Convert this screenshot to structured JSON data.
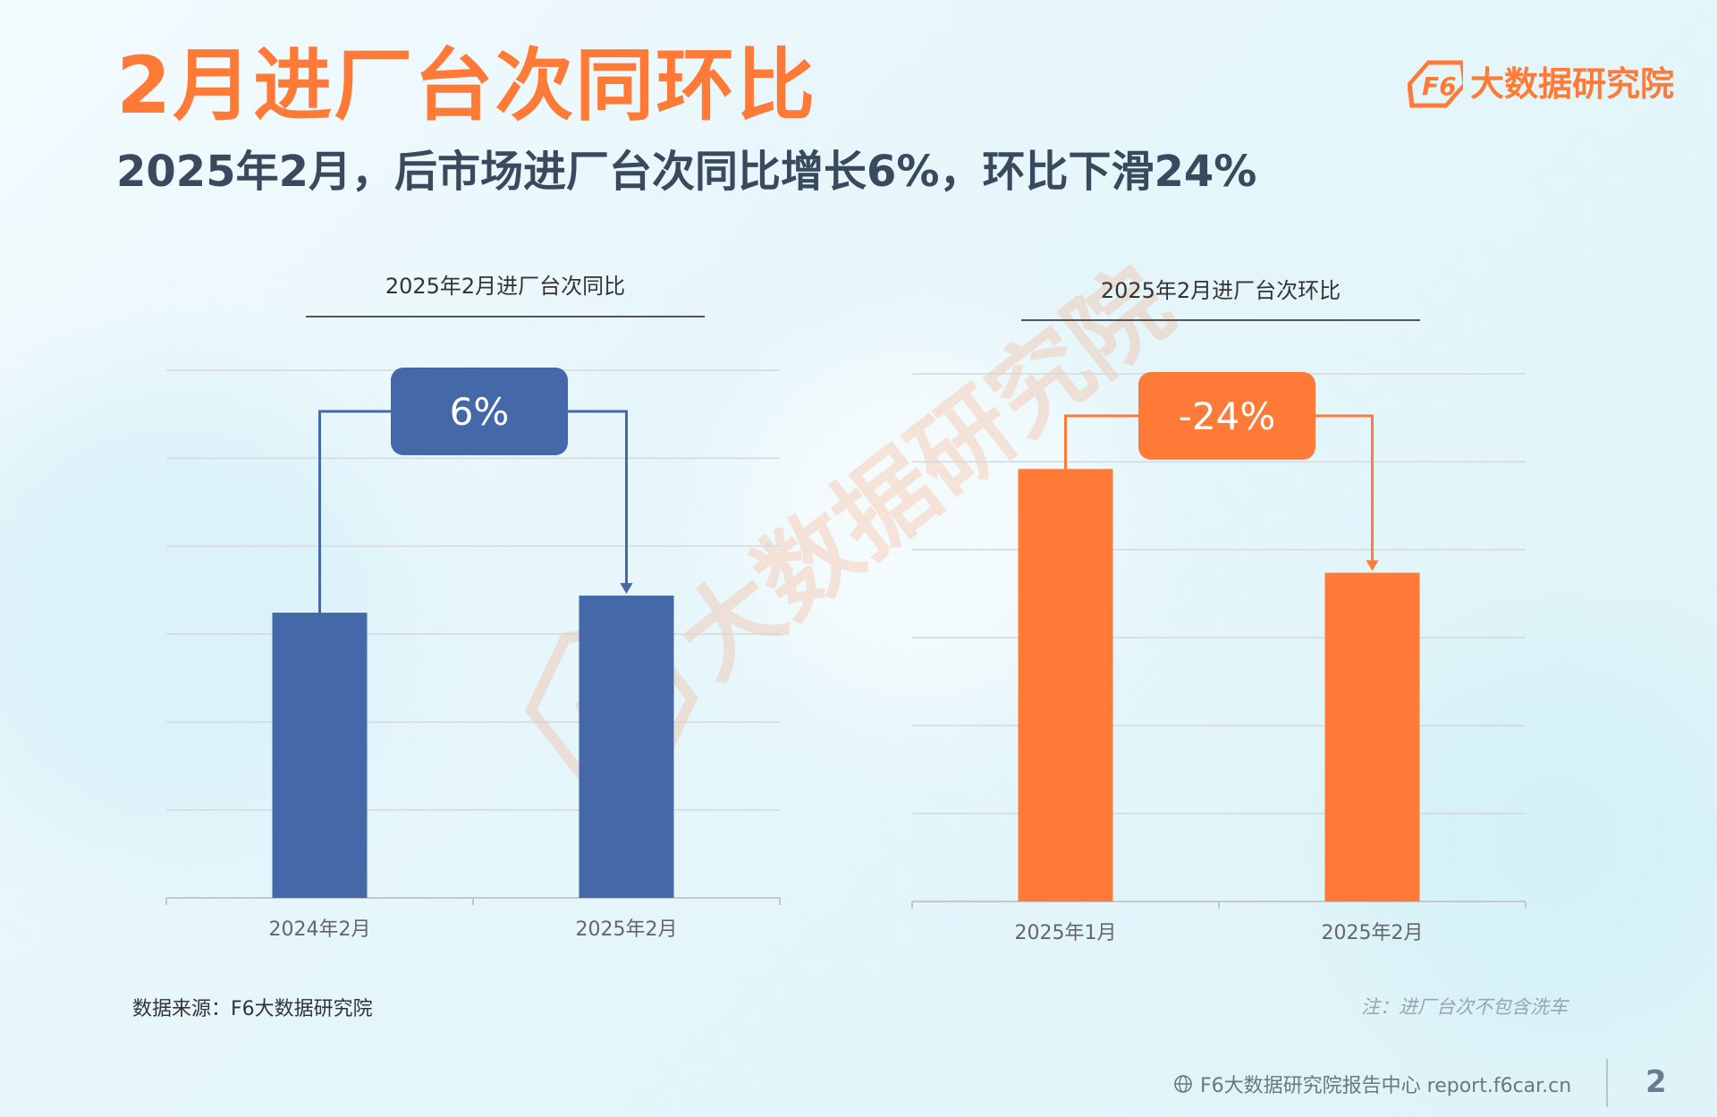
{
  "header": {
    "title": "2月进厂台次同环比",
    "subtitle": "2025年2月，后市场进厂台次同比增长6%，环比下滑24%",
    "logo_text": "大数据研究院",
    "logo_mark": "F6"
  },
  "watermark": {
    "text": "大数据研究院",
    "mark": "F6"
  },
  "colors": {
    "accent": "#ff7a36",
    "blue": "#4468a8",
    "title_dark": "#3a4a5e"
  },
  "chart_data": [
    {
      "type": "bar",
      "title": "2025年2月进厂台次同比",
      "categories": [
        "2024年2月",
        "2025年2月"
      ],
      "values": [
        100,
        106
      ],
      "change_label": "6%",
      "color": "#4468a8",
      "ylim": [
        0,
        185
      ],
      "gridlines": 6,
      "xlabel": "",
      "ylabel": ""
    },
    {
      "type": "bar",
      "title": "2025年2月进厂台次环比",
      "categories": [
        "2025年1月",
        "2025年2月"
      ],
      "values": [
        100,
        76
      ],
      "change_label": "-24%",
      "color": "#ff7a36",
      "ylim": [
        0,
        122
      ],
      "gridlines": 6,
      "xlabel": "",
      "ylabel": ""
    }
  ],
  "footer": {
    "source": "数据来源：F6大数据研究院",
    "note": "注：进厂台次不包含洗车",
    "site": "F6大数据研究院报告中心 report.f6car.cn",
    "page": "2",
    "globe_icon": "globe-icon"
  }
}
